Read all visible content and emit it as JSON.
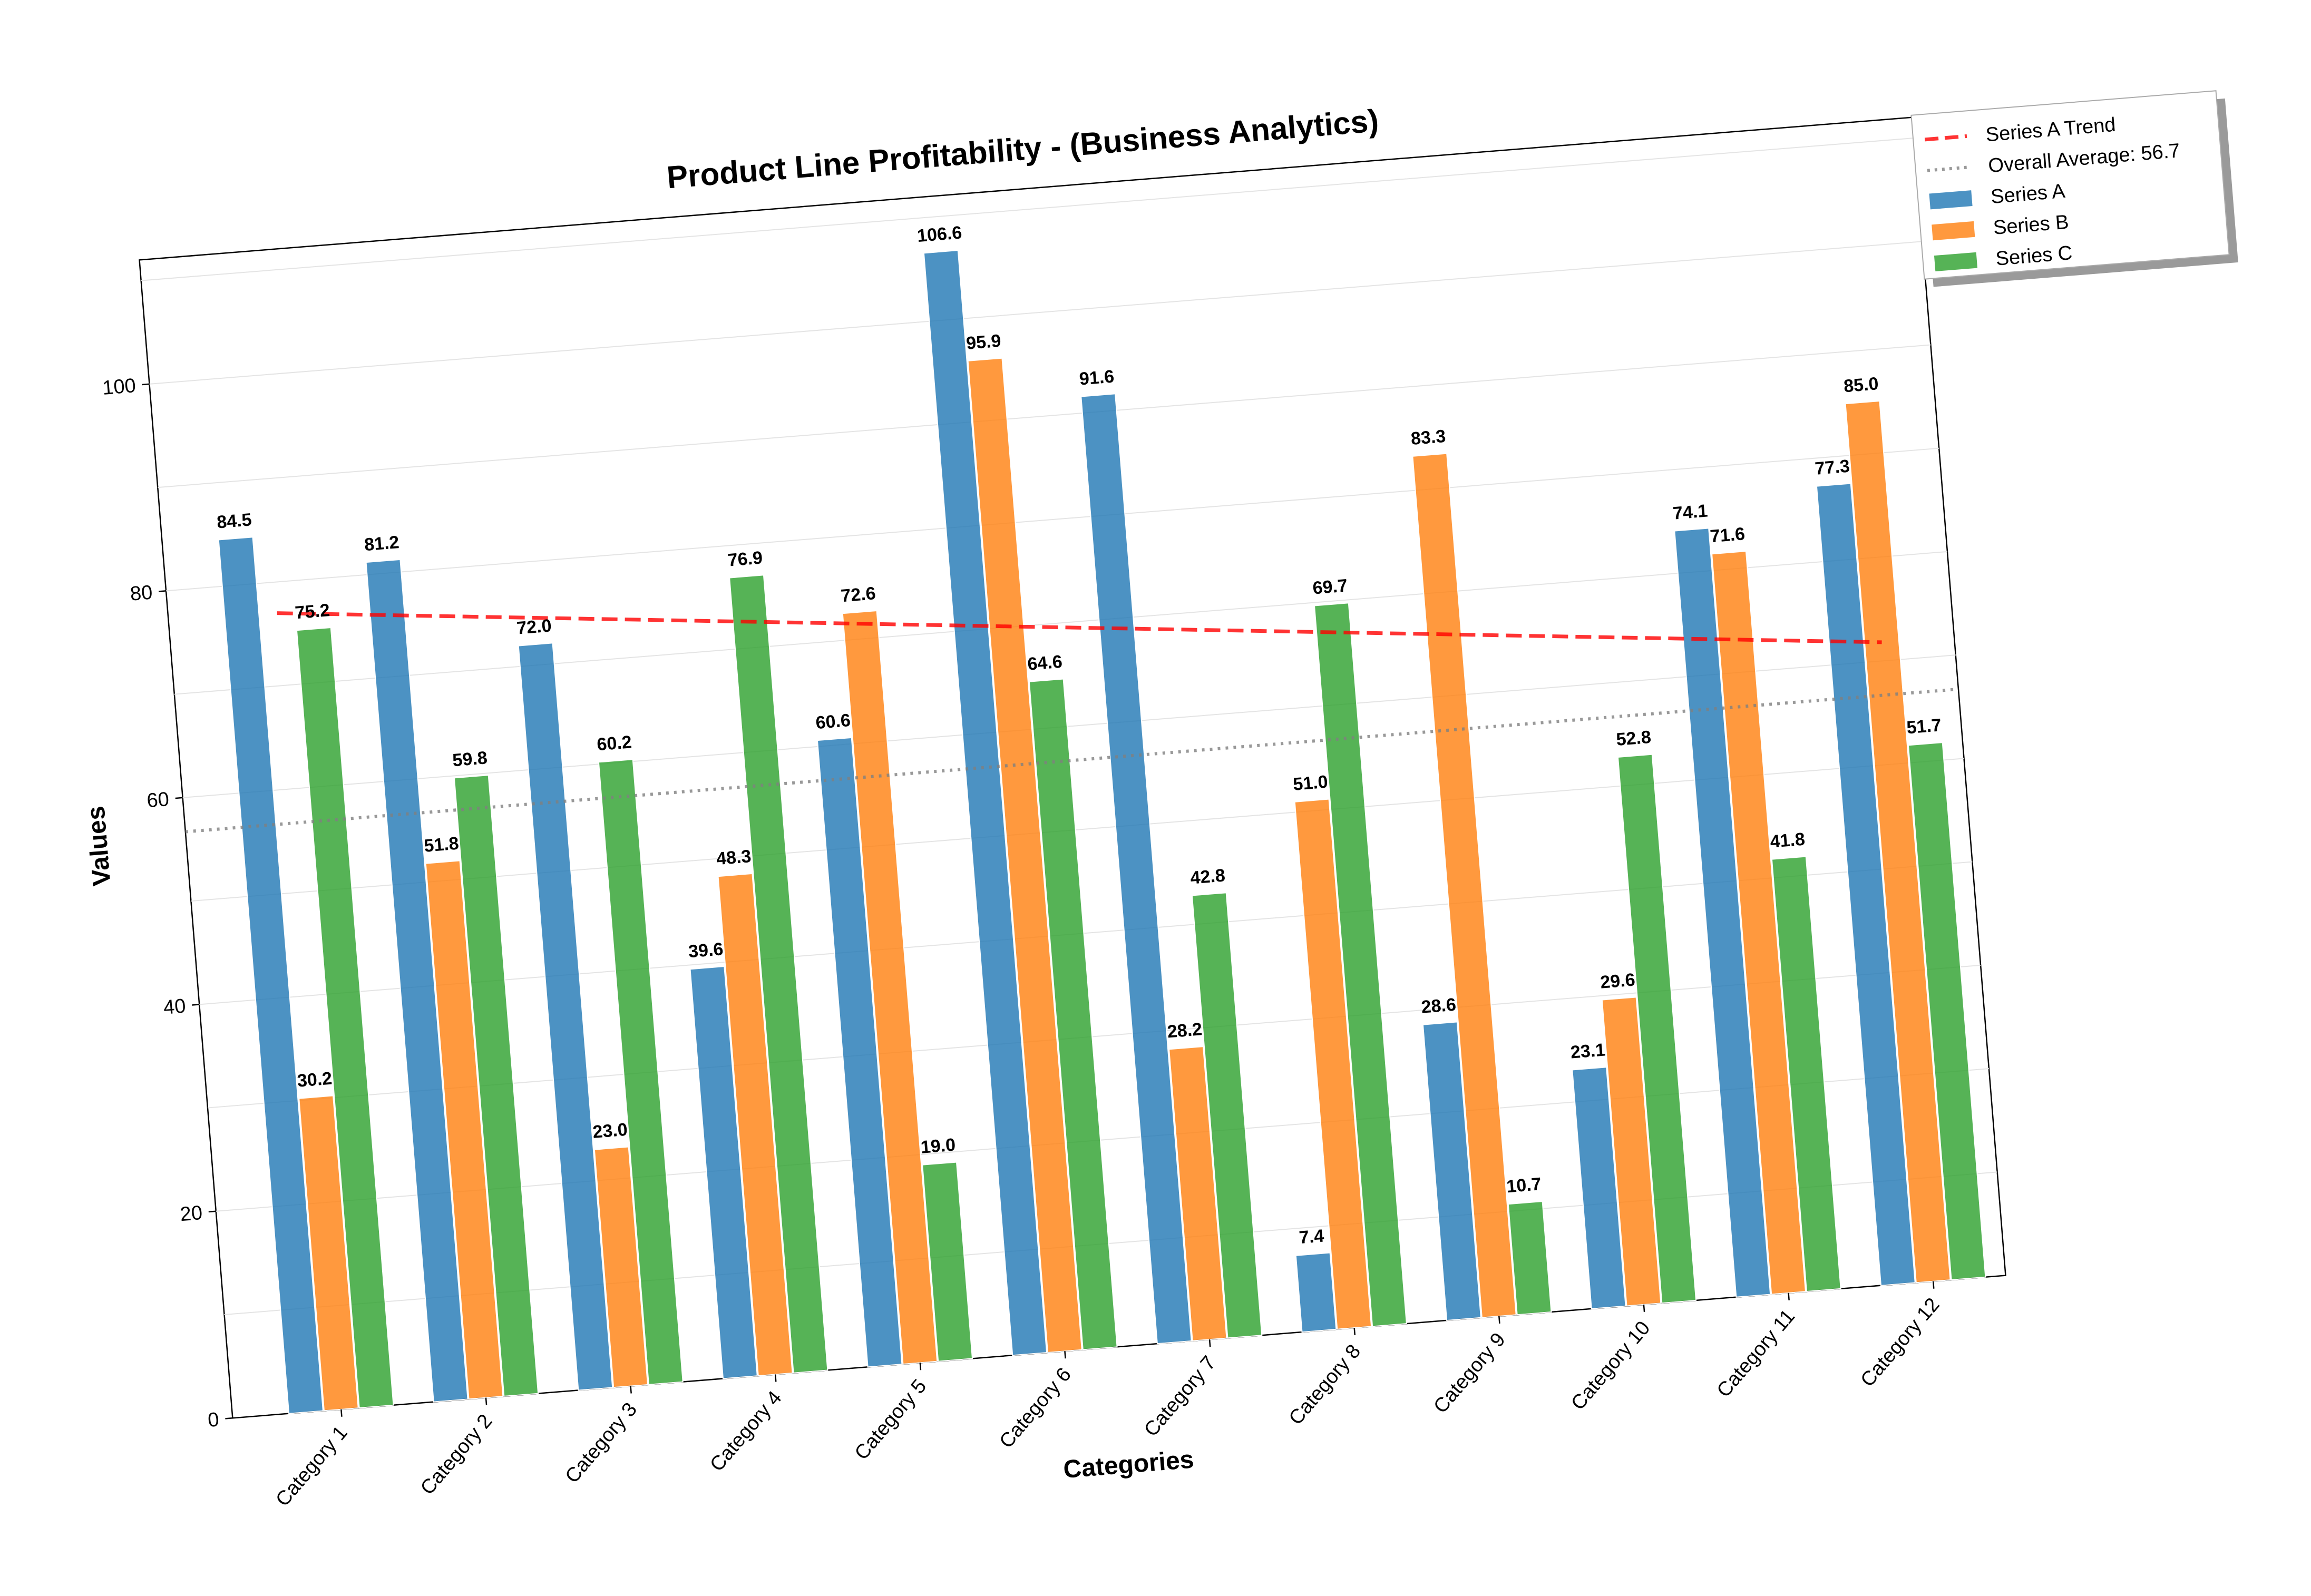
{
  "chart_data": {
    "type": "bar",
    "title": "Product Line Profitability - (Business Analytics)",
    "xlabel": "Categories",
    "ylabel": "Values",
    "categories": [
      "Category 1",
      "Category 2",
      "Category 3",
      "Category 4",
      "Category 5",
      "Category 6",
      "Category 7",
      "Category 8",
      "Category 9",
      "Category 10",
      "Category 11",
      "Category 12"
    ],
    "series": [
      {
        "name": "Series A",
        "color": "#1f77b4",
        "values": [
          84.5,
          81.2,
          72.0,
          39.6,
          60.6,
          106.6,
          91.6,
          7.4,
          28.6,
          23.1,
          74.1,
          77.3
        ]
      },
      {
        "name": "Series B",
        "color": "#ff7f0e",
        "values": [
          30.2,
          51.8,
          23.0,
          48.3,
          72.6,
          95.9,
          28.2,
          51.0,
          83.3,
          29.6,
          71.6,
          85.0
        ]
      },
      {
        "name": "Series C",
        "color": "#2ca02c",
        "values": [
          75.2,
          59.8,
          60.2,
          76.9,
          19.0,
          64.6,
          42.8,
          69.7,
          10.7,
          52.8,
          41.8,
          51.7
        ]
      }
    ],
    "trend": {
      "name": "Series A Trend",
      "color": "#ff0000",
      "start": 77.0,
      "end": 61.8
    },
    "average": {
      "name": "Overall Average: 56.7",
      "color": "#808080",
      "value": 56.7
    },
    "ylim": [
      0,
      112
    ],
    "yticks": [
      0,
      20,
      40,
      60,
      80,
      100
    ],
    "grid": true,
    "legend_position": "top-right"
  }
}
